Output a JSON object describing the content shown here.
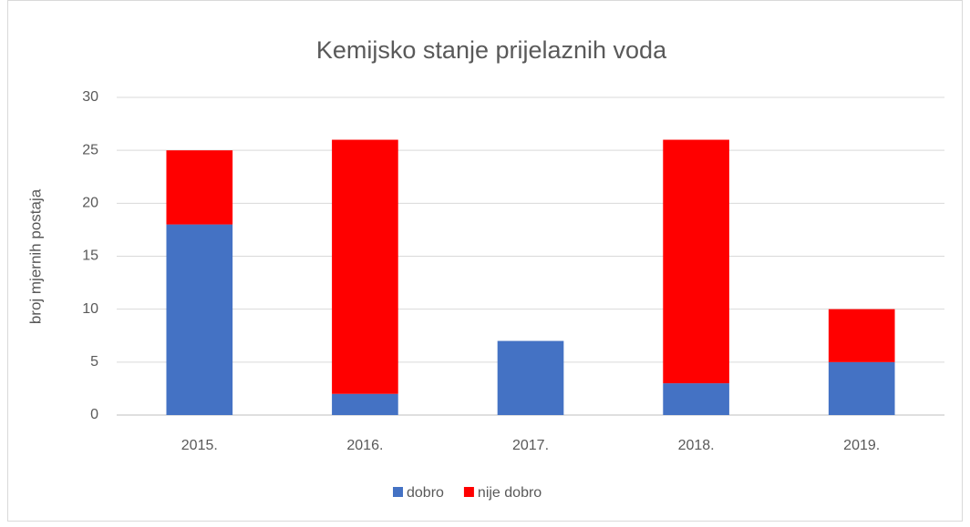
{
  "chart_data": {
    "type": "bar",
    "stacked": true,
    "title": "Kemijsko stanje prijelaznih voda",
    "y_label": "broj mjernih postaja",
    "categories": [
      "2015.",
      "2016.",
      "2017.",
      "2018.",
      "2019."
    ],
    "series": [
      {
        "name": "dobro",
        "color": "#4472c4",
        "values": [
          18,
          2,
          7,
          3,
          5
        ]
      },
      {
        "name": "nije dobro",
        "color": "#ff0000",
        "values": [
          7,
          24,
          0,
          23,
          5
        ]
      }
    ],
    "ylim": [
      0,
      30
    ],
    "yticks": [
      0,
      5,
      10,
      15,
      20,
      25,
      30
    ],
    "grid": true,
    "legend": "bottom"
  }
}
